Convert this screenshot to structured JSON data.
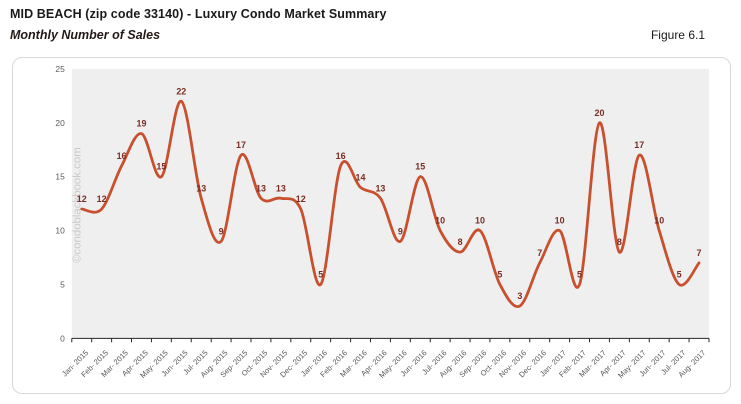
{
  "header": {
    "title": "MID BEACH (zip code 33140) - Luxury Condo Market Summary",
    "subtitle": "Monthly Number of Sales",
    "figure_label": "Figure 6.1"
  },
  "watermark": "©condoblackbook.com",
  "chart_data": {
    "type": "line",
    "title": "Monthly Number of Sales",
    "smooth": true,
    "data_labels": true,
    "grid": false,
    "legend": "none",
    "categories": [
      "Jan- 2015",
      "Feb- 2015",
      "Mar- 2015",
      "Apr- 2015",
      "May- 2015",
      "Jun- 2015",
      "Jul- 2015",
      "Aug- 2015",
      "Sep- 2015",
      "Oct- 2015",
      "Nov- 2015",
      "Dec- 2015",
      "Jan- 2016",
      "Feb- 2016",
      "Mar- 2016",
      "Apr- 2016",
      "May- 2016",
      "Jun- 2016",
      "Jul- 2016",
      "Aug- 2016",
      "Sep- 2016",
      "Oct- 2016",
      "Nov- 2016",
      "Dec- 2016",
      "Jan- 2017",
      "Feb- 2017",
      "Mar- 2017",
      "Apr- 2017",
      "May- 2017",
      "Jun- 2017",
      "Jul- 2017",
      "Aug- 2017"
    ],
    "values": [
      12,
      12,
      16,
      19,
      15,
      22,
      13,
      9,
      17,
      13,
      13,
      12,
      5,
      16,
      14,
      13,
      9,
      15,
      10,
      8,
      10,
      5,
      3,
      7,
      10,
      5,
      20,
      8,
      17,
      10,
      5,
      7
    ],
    "xlabel": "",
    "ylabel": "",
    "ylim": [
      0,
      25
    ],
    "yticks": [
      0,
      5,
      10,
      15,
      20,
      25
    ],
    "colors": {
      "line": "#c8502e",
      "data_label": "#7a2e25",
      "plot_bg": "#efefef",
      "axis_line": "#262626",
      "tick_label": "#595959",
      "watermark": "#c9c9c9"
    }
  }
}
